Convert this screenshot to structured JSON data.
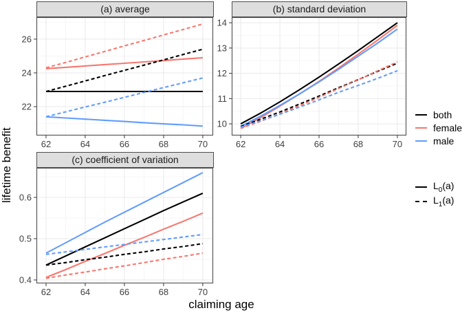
{
  "figure": {
    "ylabel": "lifetime benefit",
    "xlabel": "claiming age"
  },
  "colors": {
    "both": "#000000",
    "female": "#F8766D",
    "male": "#619CFF",
    "grid_major": "#E9E9E9",
    "grid_minor": "#F5F5F5",
    "panel_border": "#4D4D4D",
    "tick_mark": "#333333",
    "strip_bg": "#DEDEDE"
  },
  "legend": {
    "color_items": [
      {
        "label": "both",
        "group": "both"
      },
      {
        "label": "female",
        "group": "female"
      },
      {
        "label": "male",
        "group": "male"
      }
    ],
    "linetype_items": [
      {
        "pre": "L",
        "sub": "0",
        "post": "(a)",
        "linetype": "L0"
      },
      {
        "pre": "L",
        "sub": "1",
        "post": "(a)",
        "linetype": "L1"
      }
    ]
  },
  "chart_data": [
    {
      "type": "line",
      "title": "(a) average",
      "xlim": [
        61.51,
        70.53
      ],
      "ylim": [
        20.29,
        27.3
      ],
      "x_ticks": [
        62,
        64,
        66,
        68,
        70
      ],
      "x_tick_labels": [
        "62",
        "64",
        "66",
        "68",
        "70"
      ],
      "x_minor": [
        63,
        65,
        67,
        69
      ],
      "y_ticks": [
        22,
        24,
        26
      ],
      "y_tick_labels": [
        "22",
        "24",
        "26"
      ],
      "y_minor": [
        21,
        23,
        25,
        27
      ],
      "series": [
        {
          "group": "both",
          "linetype": "L0",
          "x": [
            62,
            63,
            64,
            65,
            66,
            67,
            68,
            69,
            70
          ],
          "y": [
            22.9,
            22.9,
            22.9,
            22.9,
            22.9,
            22.9,
            22.9,
            22.9,
            22.9
          ]
        },
        {
          "group": "female",
          "linetype": "L0",
          "x": [
            62,
            63,
            64,
            65,
            66,
            67,
            68,
            69,
            70
          ],
          "y": [
            24.25,
            24.33,
            24.41,
            24.49,
            24.57,
            24.65,
            24.73,
            24.82,
            24.9
          ]
        },
        {
          "group": "male",
          "linetype": "L0",
          "x": [
            62,
            63,
            64,
            65,
            66,
            67,
            68,
            69,
            70
          ],
          "y": [
            21.4,
            21.33,
            21.26,
            21.19,
            21.12,
            21.05,
            20.98,
            20.92,
            20.85
          ]
        },
        {
          "group": "both",
          "linetype": "L1",
          "x": [
            62,
            63,
            64,
            65,
            66,
            67,
            68,
            69,
            70
          ],
          "y": [
            22.9,
            23.21,
            23.52,
            23.84,
            24.15,
            24.46,
            24.77,
            25.09,
            25.4
          ]
        },
        {
          "group": "female",
          "linetype": "L1",
          "x": [
            62,
            63,
            64,
            65,
            66,
            67,
            68,
            69,
            70
          ],
          "y": [
            24.3,
            24.62,
            24.95,
            25.27,
            25.6,
            25.92,
            26.25,
            26.57,
            26.9
          ]
        },
        {
          "group": "male",
          "linetype": "L1",
          "x": [
            62,
            63,
            64,
            65,
            66,
            67,
            68,
            69,
            70
          ],
          "y": [
            21.4,
            21.69,
            21.98,
            22.26,
            22.55,
            22.84,
            23.13,
            23.41,
            23.7
          ]
        }
      ]
    },
    {
      "type": "line",
      "title": "(b) standard deviation",
      "xlim": [
        61.54,
        70.46
      ],
      "ylim": [
        9.54,
        14.22
      ],
      "x_ticks": [
        62,
        64,
        66,
        68,
        70
      ],
      "x_tick_labels": [
        "62",
        "64",
        "66",
        "68",
        "70"
      ],
      "x_minor": [
        63,
        65,
        67,
        69
      ],
      "y_ticks": [
        10,
        11,
        12,
        13,
        14
      ],
      "y_tick_labels": [
        "10",
        "11",
        "12",
        "13",
        "14"
      ],
      "y_minor": [
        9.5,
        10.5,
        11.5,
        12.5,
        13.5
      ],
      "series": [
        {
          "group": "both",
          "linetype": "L0",
          "x": [
            62,
            63,
            64,
            65,
            66,
            67,
            68,
            69,
            70
          ],
          "y": [
            10.0,
            10.42,
            10.87,
            11.35,
            11.85,
            12.37,
            12.9,
            13.45,
            14.0
          ]
        },
        {
          "group": "female",
          "linetype": "L0",
          "x": [
            62,
            63,
            64,
            65,
            66,
            67,
            68,
            69,
            70
          ],
          "y": [
            9.82,
            10.24,
            10.7,
            11.18,
            11.68,
            12.21,
            12.76,
            13.32,
            13.9
          ]
        },
        {
          "group": "male",
          "linetype": "L0",
          "x": [
            62,
            63,
            64,
            65,
            66,
            67,
            68,
            69,
            70
          ],
          "y": [
            9.9,
            10.3,
            10.73,
            11.18,
            11.66,
            12.16,
            12.68,
            13.2,
            13.75
          ]
        },
        {
          "group": "both",
          "linetype": "L1",
          "x": [
            62,
            63,
            64,
            65,
            66,
            67,
            68,
            69,
            70
          ],
          "y": [
            9.9,
            10.18,
            10.47,
            10.78,
            11.1,
            11.43,
            11.75,
            12.08,
            12.4
          ]
        },
        {
          "group": "female",
          "linetype": "L1",
          "x": [
            62,
            63,
            64,
            65,
            66,
            67,
            68,
            69,
            70
          ],
          "y": [
            9.82,
            10.1,
            10.4,
            10.72,
            11.05,
            11.4,
            11.74,
            12.1,
            12.45
          ]
        },
        {
          "group": "male",
          "linetype": "L1",
          "x": [
            62,
            63,
            64,
            65,
            66,
            67,
            68,
            69,
            70
          ],
          "y": [
            9.87,
            10.12,
            10.38,
            10.66,
            10.95,
            11.25,
            11.52,
            11.8,
            12.1
          ]
        }
      ]
    },
    {
      "type": "line",
      "title": "(c) coefficient of variation",
      "xlim": [
        61.51,
        70.53
      ],
      "ylim": [
        0.3917,
        0.6717
      ],
      "x_ticks": [
        62,
        64,
        66,
        68,
        70
      ],
      "x_tick_labels": [
        "62",
        "64",
        "66",
        "68",
        "70"
      ],
      "x_minor": [
        63,
        65,
        67,
        69
      ],
      "y_ticks": [
        0.4,
        0.5,
        0.6
      ],
      "y_tick_labels": [
        "0.4",
        "0.5",
        "0.6"
      ],
      "y_minor": [
        0.45,
        0.55,
        0.65
      ],
      "series": [
        {
          "group": "both",
          "linetype": "L0",
          "x": [
            62,
            63,
            64,
            65,
            66,
            67,
            68,
            69,
            70
          ],
          "y": [
            0.436,
            0.458,
            0.48,
            0.502,
            0.524,
            0.546,
            0.568,
            0.589,
            0.61
          ]
        },
        {
          "group": "female",
          "linetype": "L0",
          "x": [
            62,
            63,
            64,
            65,
            66,
            67,
            68,
            69,
            70
          ],
          "y": [
            0.406,
            0.425,
            0.445,
            0.464,
            0.484,
            0.503,
            0.523,
            0.542,
            0.562
          ]
        },
        {
          "group": "male",
          "linetype": "L0",
          "x": [
            62,
            63,
            64,
            65,
            66,
            67,
            68,
            69,
            70
          ],
          "y": [
            0.465,
            0.49,
            0.515,
            0.54,
            0.564,
            0.588,
            0.612,
            0.636,
            0.66
          ]
        },
        {
          "group": "both",
          "linetype": "L1",
          "x": [
            62,
            63,
            64,
            65,
            66,
            67,
            68,
            69,
            70
          ],
          "y": [
            0.436,
            0.442,
            0.449,
            0.455,
            0.462,
            0.468,
            0.475,
            0.481,
            0.488
          ]
        },
        {
          "group": "female",
          "linetype": "L1",
          "x": [
            62,
            63,
            64,
            65,
            66,
            67,
            68,
            69,
            70
          ],
          "y": [
            0.404,
            0.412,
            0.419,
            0.427,
            0.434,
            0.442,
            0.45,
            0.457,
            0.465
          ]
        },
        {
          "group": "male",
          "linetype": "L1",
          "x": [
            62,
            63,
            64,
            65,
            66,
            67,
            68,
            69,
            70
          ],
          "y": [
            0.462,
            0.468,
            0.474,
            0.48,
            0.486,
            0.492,
            0.498,
            0.504,
            0.51
          ]
        }
      ]
    }
  ]
}
